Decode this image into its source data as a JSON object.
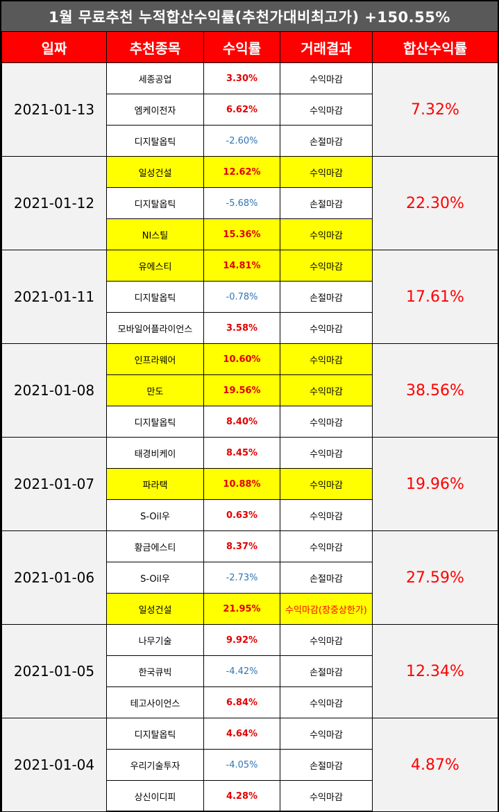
{
  "title": "1월 무료추천 누적합산수익률(추천가대비최고가) +150.55%",
  "headers": [
    "일짜",
    "추천종목",
    "수익률",
    "거래결과",
    "합산수익률"
  ],
  "colors": {
    "header_bg": "#ff0000",
    "title_bg": "#595959",
    "highlight": "#ffff00",
    "positive": "#e00000",
    "negative": "#2e75b6"
  },
  "groups": [
    {
      "date": "2021-01-13",
      "total": "7.32%",
      "rows": [
        {
          "stock": "세종공업",
          "ret": "3.30%",
          "result": "수익마감",
          "neg": false,
          "hl": false
        },
        {
          "stock": "엠케이전자",
          "ret": "6.62%",
          "result": "수익마감",
          "neg": false,
          "hl": false
        },
        {
          "stock": "디지탈옵틱",
          "ret": "-2.60%",
          "result": "손절마감",
          "neg": true,
          "hl": false
        }
      ]
    },
    {
      "date": "2021-01-12",
      "total": "22.30%",
      "rows": [
        {
          "stock": "일성건설",
          "ret": "12.62%",
          "result": "수익마감",
          "neg": false,
          "hl": true
        },
        {
          "stock": "디지탈옵틱",
          "ret": "-5.68%",
          "result": "손절마감",
          "neg": true,
          "hl": false
        },
        {
          "stock": "NI스틸",
          "ret": "15.36%",
          "result": "수익마감",
          "neg": false,
          "hl": true
        }
      ]
    },
    {
      "date": "2021-01-11",
      "total": "17.61%",
      "rows": [
        {
          "stock": "유에스티",
          "ret": "14.81%",
          "result": "수익마감",
          "neg": false,
          "hl": true
        },
        {
          "stock": "디지탈옵틱",
          "ret": "-0.78%",
          "result": "손절마감",
          "neg": true,
          "hl": false
        },
        {
          "stock": "모바일어플라이언스",
          "ret": "3.58%",
          "result": "수익마감",
          "neg": false,
          "hl": false
        }
      ]
    },
    {
      "date": "2021-01-08",
      "total": "38.56%",
      "rows": [
        {
          "stock": "인프라웨어",
          "ret": "10.60%",
          "result": "수익마감",
          "neg": false,
          "hl": true
        },
        {
          "stock": "만도",
          "ret": "19.56%",
          "result": "수익마감",
          "neg": false,
          "hl": true
        },
        {
          "stock": "디지탈옵틱",
          "ret": "8.40%",
          "result": "수익마감",
          "neg": false,
          "hl": false
        }
      ]
    },
    {
      "date": "2021-01-07",
      "total": "19.96%",
      "rows": [
        {
          "stock": "태경비케이",
          "ret": "8.45%",
          "result": "수익마감",
          "neg": false,
          "hl": false
        },
        {
          "stock": "파라택",
          "ret": "10.88%",
          "result": "수익마감",
          "neg": false,
          "hl": true
        },
        {
          "stock": "S-Oil우",
          "ret": "0.63%",
          "result": "수익마감",
          "neg": false,
          "hl": false
        }
      ]
    },
    {
      "date": "2021-01-06",
      "total": "27.59%",
      "rows": [
        {
          "stock": "황금에스티",
          "ret": "8.37%",
          "result": "수익마감",
          "neg": false,
          "hl": false
        },
        {
          "stock": "S-Oil우",
          "ret": "-2.73%",
          "result": "손절마감",
          "neg": true,
          "hl": false
        },
        {
          "stock": "일성건설",
          "ret": "21.95%",
          "result": "수익마감(장중상한가)",
          "neg": false,
          "hl": true,
          "special": true
        }
      ]
    },
    {
      "date": "2021-01-05",
      "total": "12.34%",
      "rows": [
        {
          "stock": "나무기술",
          "ret": "9.92%",
          "result": "수익마감",
          "neg": false,
          "hl": false
        },
        {
          "stock": "한국큐빅",
          "ret": "-4.42%",
          "result": "손절마감",
          "neg": true,
          "hl": false
        },
        {
          "stock": "테고사이언스",
          "ret": "6.84%",
          "result": "수익마감",
          "neg": false,
          "hl": false
        }
      ]
    },
    {
      "date": "2021-01-04",
      "total": "4.87%",
      "rows": [
        {
          "stock": "디지탈옵틱",
          "ret": "4.64%",
          "result": "수익마감",
          "neg": false,
          "hl": false
        },
        {
          "stock": "우리기술투자",
          "ret": "-4.05%",
          "result": "손절마감",
          "neg": true,
          "hl": false
        },
        {
          "stock": "상신이디피",
          "ret": "4.28%",
          "result": "수익마감",
          "neg": false,
          "hl": false
        }
      ]
    }
  ]
}
